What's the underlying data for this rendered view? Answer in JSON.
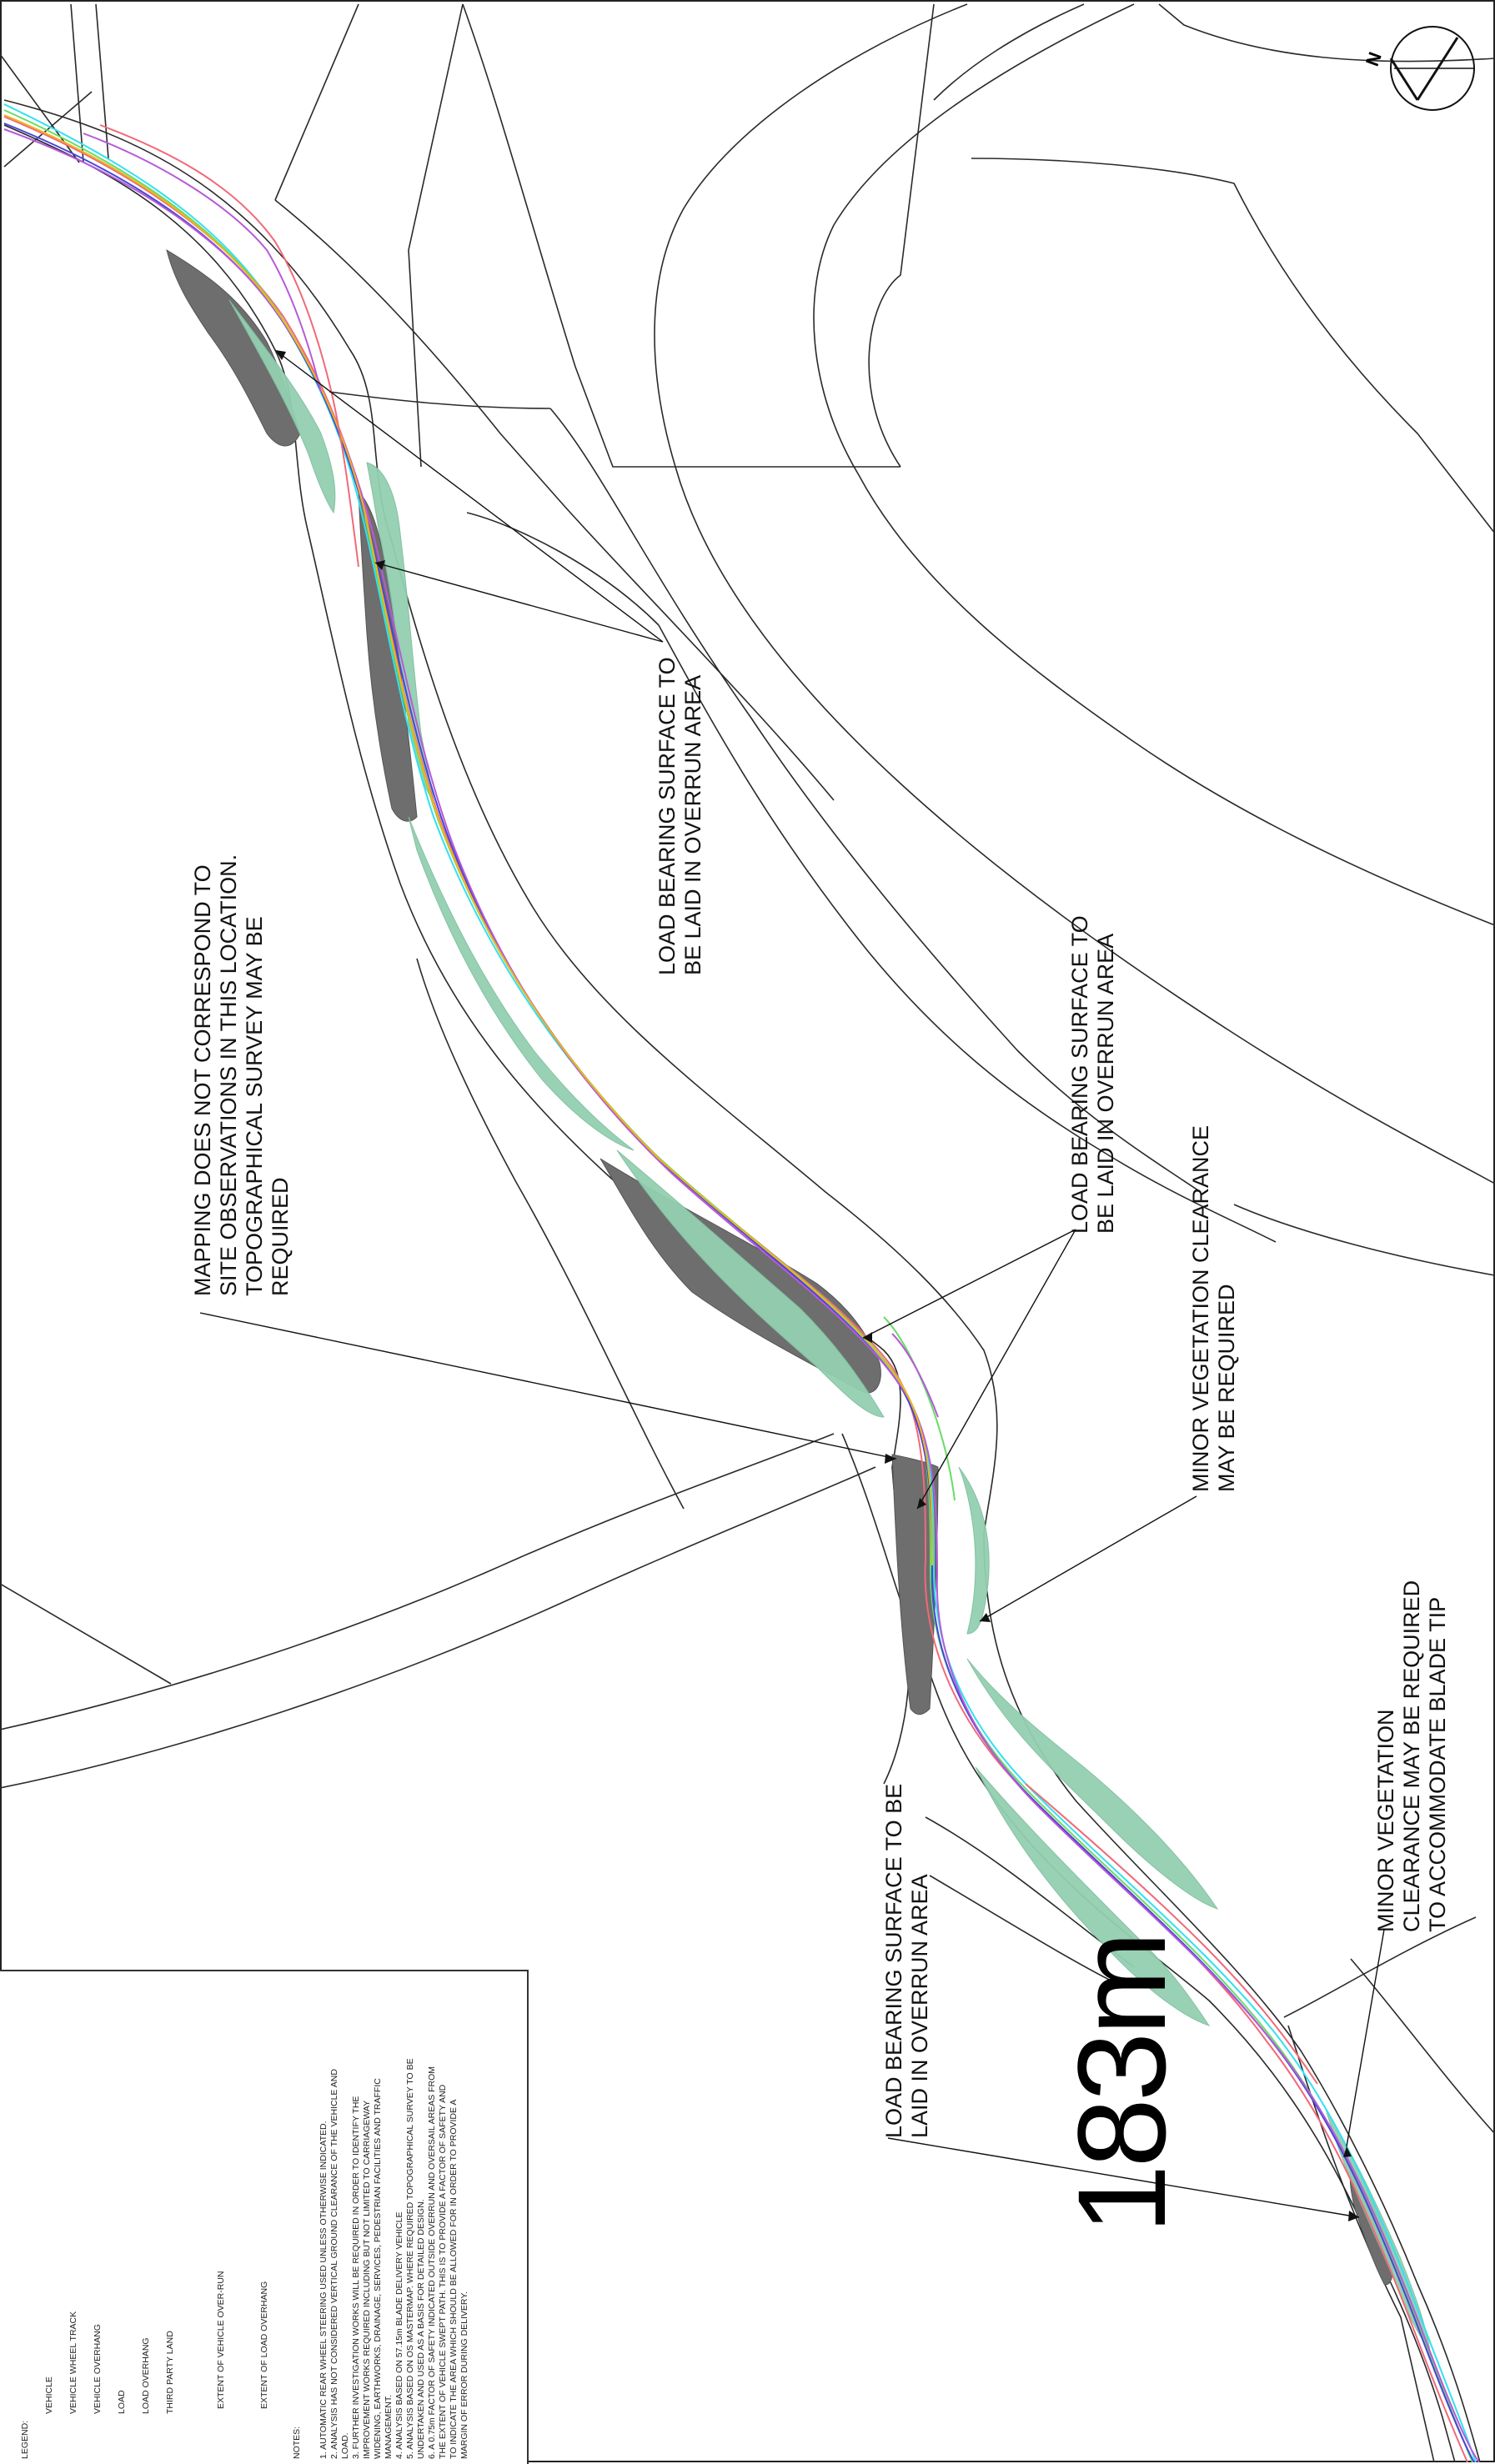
{
  "annotations": {
    "load_bearing_1": [
      "LOAD BEARING SURFACE TO",
      "BE LAID IN OVERRUN AREA"
    ],
    "load_bearing_2": [
      "LOAD BEARING SURFACE TO",
      "BE LAID IN OVERRUN AREA"
    ],
    "mapping_note": [
      "MAPPING DOES NOT CORRESPOND TO",
      "SITE OBSERVATIONS IN THIS LOCATION.",
      "TOPOGRAPHICAL SURVEY MAY BE",
      "REQUIRED"
    ],
    "minor_vegetation_1": [
      "MINOR VEGETATION CLEARANCE",
      "MAY BE REQUIRED"
    ],
    "load_bearing_3": [
      "LOAD BEARING SURFACE TO BE",
      "LAID IN OVERRUN AREA"
    ],
    "minor_vegetation_2": [
      "MINOR VEGETATION",
      "CLEARANCE MAY BE REQUIRED",
      "TO ACCOMMODATE BLADE TIP"
    ]
  },
  "chainage_label": "183m",
  "north_arrow": {
    "label": "N"
  },
  "legend": {
    "title": "LEGEND:",
    "items": [
      {
        "label": "VEHICLE",
        "color": "#33e0f0",
        "kind": "line"
      },
      {
        "label": "VEHICLE WHEEL TRACK",
        "color": "#f06a78",
        "kind": "line"
      },
      {
        "label": "VEHICLE OVERHANG",
        "color": "#66dd66",
        "kind": "line"
      },
      {
        "label": "LOAD",
        "color": "#4646d8",
        "kind": "line"
      },
      {
        "label": "LOAD OVERHANG",
        "color": "#b65ad8",
        "kind": "line"
      },
      {
        "label": "THIRD PARTY LAND",
        "color": "#f2b418",
        "kind": "line"
      },
      {
        "label": "EXTENT OF VEHICLE OVER-RUN",
        "color": "#6e6e6e",
        "kind": "fill"
      },
      {
        "label": "EXTENT OF LOAD OVERHANG",
        "color": "#93cfb0",
        "kind": "fill"
      }
    ],
    "notes_title": "NOTES:",
    "notes": [
      "1.   AUTOMATIC REAR WHEEL STEERING USED UNLESS OTHERWISE INDICATED.",
      "2.   ANALYSIS HAS NOT CONSIDERED VERTICAL GROUND CLEARANCE OF THE VEHICLE AND",
      "      LOAD.",
      "3.   FURTHER INVESTIGATION WORKS WILL BE REQUIRED IN ORDER TO IDENTIFY THE",
      "      IMPROVEMENT WORKS REQUIRED INCLUDING BUT NOT LIMITED TO CARRIAGEWAY",
      "      WIDENING, EARTHWORKS, DRAINAGE, SERVICES, PEDESTRIAN FACILITIES AND TRAFFIC",
      "      MANAGEMENT.",
      "4.   ANALYSIS BASED ON 57.15m BLADE DELIVERY VEHICLE",
      "5.   ANALYSIS BASED ON OS MASTERMAP. WHERE REQUIRED TOPOGRAPHICAL SURVEY TO BE",
      "      UNDERTAKEN AND USED AS A BASIS FOR DETAILED DESIGN.",
      "6.   A 0.75m FACTOR OF SAFETY INDICATED OUTSIDE OVERRUN AND OVERSAIL AREAS FROM",
      "      THE EXTENT OF VEHICLE SWEPT PATH. THIS IS TO PROVIDE A FACTOR OF SAFETY AND",
      "      TO INDICATE THE AREA WHICH SHOULD BE ALLOWED FOR IN ORDER TO PROVIDE A",
      "      MARGIN OF ERROR DURING DELIVERY."
    ]
  }
}
